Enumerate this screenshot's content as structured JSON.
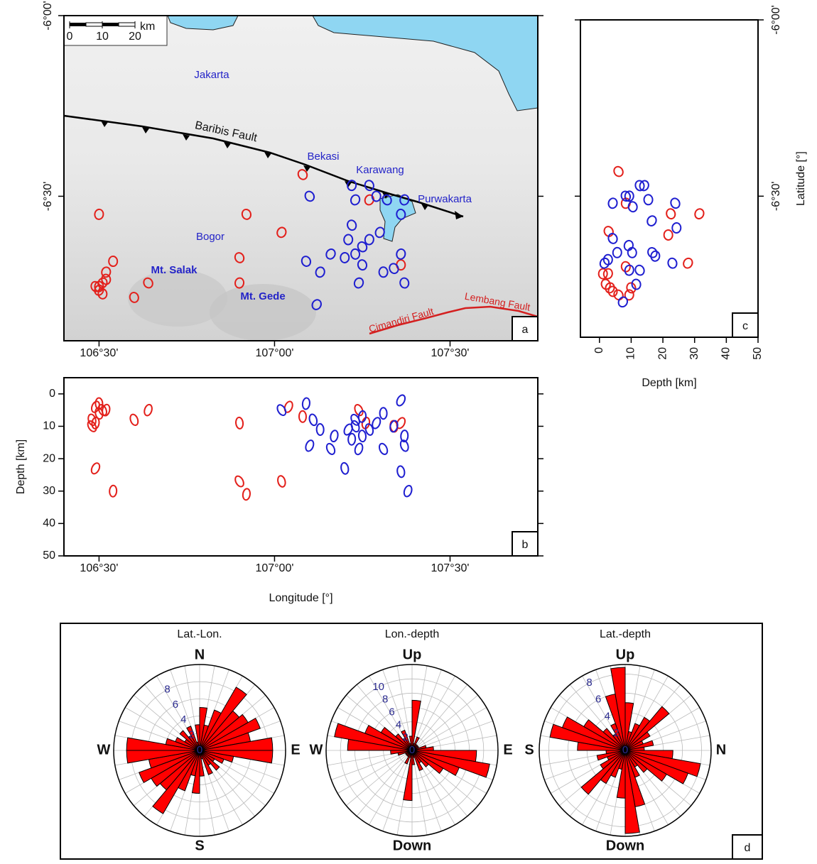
{
  "chart_data": [
    {
      "type": "map",
      "panel_label": "a",
      "xlim": [
        106.4,
        107.75
      ],
      "ylim": [
        -6.9,
        -6.0
      ],
      "xticks": [
        {
          "value": 106.5,
          "label": "106°30'"
        },
        {
          "value": 107,
          "label": "107°00'"
        },
        {
          "value": 107.5,
          "label": "107°30'"
        }
      ],
      "yticks": [
        {
          "value": -6,
          "label": "-6°00'"
        },
        {
          "value": -6.5,
          "label": "-6°30'"
        }
      ],
      "scale_bar": {
        "ticks": [
          0,
          10,
          20
        ],
        "unit": "km"
      },
      "annotations": [
        "Jakarta",
        "Baribis Fault",
        "Bekasi",
        "Karawang",
        "Purwakarta",
        "Bogor",
        "Mt. Salak",
        "Mt. Gede",
        "Cimandiri Fault",
        "Lembang Fault"
      ],
      "series": [
        {
          "color": "#e3201b",
          "x": [
            107.08,
            106.5,
            106.92,
            107.02,
            106.54,
            106.9,
            106.52,
            106.52,
            106.51,
            106.5,
            106.49,
            106.5,
            106.51,
            106.64,
            106.9,
            106.6,
            107.27,
            107.36
          ],
          "y": [
            -6.44,
            -6.55,
            -6.55,
            -6.6,
            -6.68,
            -6.67,
            -6.71,
            -6.73,
            -6.74,
            -6.75,
            -6.75,
            -6.76,
            -6.77,
            -6.74,
            -6.74,
            -6.78,
            -6.51,
            -6.69
          ]
        },
        {
          "color": "#1f1fd0",
          "x": [
            107.1,
            107.22,
            107.27,
            107.23,
            107.29,
            107.32,
            107.37,
            107.36,
            107.16,
            107.2,
            107.09,
            107.13,
            107.23,
            107.25,
            107.27,
            107.25,
            107.24,
            107.31,
            107.34,
            107.36,
            107.37,
            107.12,
            107.21,
            107.22,
            107.3
          ],
          "y": [
            -6.5,
            -6.47,
            -6.47,
            -6.51,
            -6.5,
            -6.51,
            -6.51,
            -6.55,
            -6.66,
            -6.67,
            -6.68,
            -6.71,
            -6.66,
            -6.64,
            -6.62,
            -6.69,
            -6.74,
            -6.71,
            -6.7,
            -6.66,
            -6.74,
            -6.8,
            -6.62,
            -6.58,
            -6.6
          ]
        }
      ]
    },
    {
      "type": "scatter",
      "panel_label": "b",
      "x_label": "Longitude [°]",
      "y_label": "Depth [km]",
      "y_inverted": true,
      "y_axis": "left",
      "xlim": [
        106.4,
        107.75
      ],
      "ylim": [
        -5,
        50
      ],
      "xticks": [
        {
          "value": 106.5,
          "label": "106°30'"
        },
        {
          "value": 107,
          "label": "107°00'"
        },
        {
          "value": 107.5,
          "label": "107°30'"
        }
      ],
      "yticks": [
        0,
        10,
        20,
        30,
        40,
        50
      ],
      "series": [
        {
          "color": "#e3201b",
          "x": [
            106.48,
            106.49,
            106.48,
            106.49,
            106.5,
            106.51,
            106.52,
            106.5,
            106.49,
            106.54,
            106.6,
            106.64,
            106.9,
            106.9,
            106.92,
            107.02,
            107.04,
            107.08,
            107.24,
            107.26,
            107.34,
            107.36
          ],
          "y": [
            10,
            9,
            8,
            4,
            3,
            5,
            5,
            6,
            23,
            30,
            8,
            5,
            9,
            27,
            31,
            27,
            4,
            7,
            5,
            9,
            10,
            9
          ]
        },
        {
          "color": "#1f1fd0",
          "x": [
            107.02,
            107.09,
            107.11,
            107.1,
            107.13,
            107.16,
            107.17,
            107.2,
            107.21,
            107.22,
            107.23,
            107.24,
            107.25,
            107.23,
            107.25,
            107.27,
            107.29,
            107.31,
            107.31,
            107.34,
            107.36,
            107.36,
            107.37,
            107.37,
            107.38
          ],
          "y": [
            5,
            3,
            8,
            16,
            11,
            17,
            13,
            23,
            11,
            14,
            10,
            17,
            13,
            8,
            7,
            11,
            9,
            6,
            17,
            10,
            24,
            2,
            13,
            16,
            30
          ]
        }
      ]
    },
    {
      "type": "scatter",
      "panel_label": "c",
      "x_label": "Depth [km]",
      "y_label": "Latitude [°]",
      "y_inverted": false,
      "y_axis": "right",
      "xlim": [
        -6,
        50
      ],
      "ylim": [
        -6.9,
        -6.0
      ],
      "xticks": [
        0,
        10,
        20,
        30,
        40,
        50
      ],
      "yticks": [
        {
          "value": -6,
          "label": "-6°00'"
        },
        {
          "value": -6.5,
          "label": "-6°30'"
        }
      ],
      "series": [
        {
          "color": "#e3201b",
          "x": [
            6,
            8.3,
            22.5,
            31.5,
            21.7,
            2.9,
            2.7,
            8.3,
            27.9,
            1.1,
            2,
            3.3,
            4.2,
            6,
            9.4,
            10
          ],
          "y": [
            -6.43,
            -6.52,
            -6.55,
            -6.55,
            -6.61,
            -6.6,
            -6.72,
            -6.7,
            -6.69,
            -6.72,
            -6.75,
            -6.76,
            -6.77,
            -6.78,
            -6.78,
            -6.76
          ]
        },
        {
          "color": "#1f1fd0",
          "x": [
            8.3,
            9.4,
            12.7,
            14.1,
            15.4,
            23.9,
            4.2,
            10.5,
            16.5,
            24.3,
            4.2,
            9.2,
            10.3,
            16.7,
            17.6,
            23,
            1.6,
            2.7,
            12.7,
            9.4,
            11.6,
            7.4,
            5.6
          ],
          "y": [
            -6.5,
            -6.5,
            -6.47,
            -6.47,
            -6.51,
            -6.52,
            -6.52,
            -6.53,
            -6.57,
            -6.59,
            -6.62,
            -6.64,
            -6.66,
            -6.66,
            -6.67,
            -6.69,
            -6.69,
            -6.68,
            -6.71,
            -6.71,
            -6.75,
            -6.8,
            -6.66
          ]
        }
      ]
    },
    {
      "type": "rose",
      "panel_label": "d",
      "color": "#ff0000",
      "roses": [
        {
          "title": "Lat.-Lon.",
          "labels": {
            "top": "N",
            "right": "E",
            "bottom": "S",
            "left": "W"
          },
          "rlim": [
            0,
            10
          ],
          "rticks": [
            0,
            2,
            4,
            6,
            8
          ],
          "values": [
            5,
            3,
            5,
            8.5,
            6,
            6.5,
            7.5,
            6,
            8.5,
            8.5,
            4,
            3,
            2,
            3,
            2,
            3,
            1,
            3,
            5,
            3,
            5,
            8.5,
            6,
            6.5,
            7.5,
            6,
            8.5,
            8.5,
            4,
            3,
            2,
            3,
            2,
            3,
            1,
            3
          ]
        },
        {
          "title": "Lon.-depth",
          "labels": {
            "top": "Up",
            "right": "E",
            "bottom": "Down",
            "left": "W"
          },
          "rlim": [
            0,
            12
          ],
          "rticks": [
            0,
            2,
            4,
            6,
            8,
            10
          ],
          "values": [
            7,
            1,
            2,
            1,
            1,
            1,
            1,
            2,
            3,
            9,
            11,
            7,
            5,
            3,
            2,
            3,
            1,
            2,
            7,
            1,
            2,
            1,
            1,
            1,
            1,
            2,
            3,
            9,
            11,
            7,
            5,
            3,
            2,
            3,
            1,
            2
          ]
        },
        {
          "title": "Lat.-depth",
          "labels": {
            "top": "Up",
            "right": "N",
            "bottom": "Down",
            "left": "S"
          },
          "rlim": [
            0,
            9
          ],
          "rticks": [
            0,
            2,
            4,
            6,
            8
          ],
          "values": [
            5,
            2,
            3,
            4,
            6,
            3,
            2,
            3,
            2,
            5,
            8,
            7,
            5,
            3,
            2,
            3,
            6,
            8.7,
            5,
            2,
            3,
            4,
            6,
            3,
            2,
            3,
            2,
            5,
            8,
            7,
            5,
            3,
            2,
            3,
            6,
            8.7
          ]
        }
      ]
    }
  ]
}
